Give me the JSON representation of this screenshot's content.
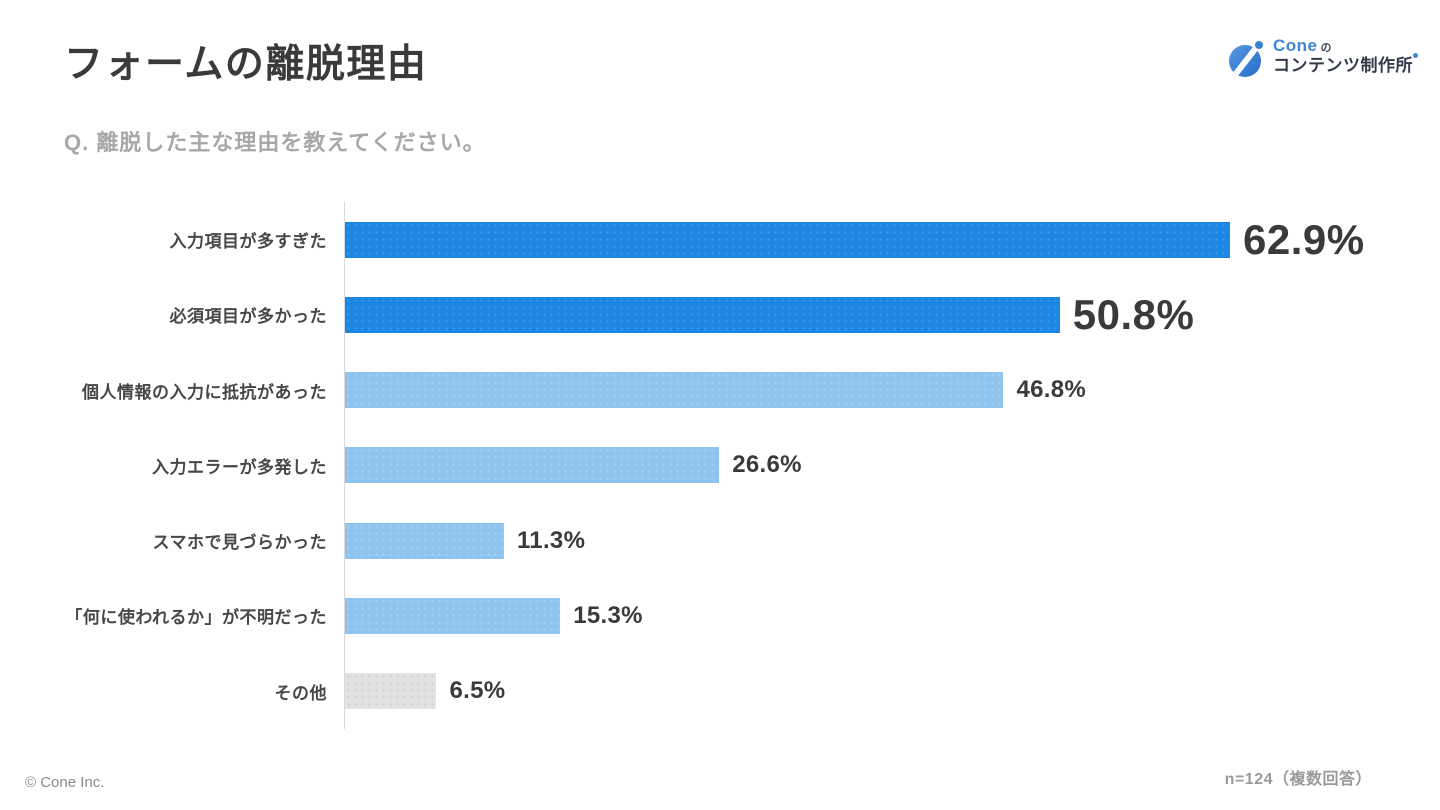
{
  "title": "フォームの離脱理由",
  "subtitle": "Q. 離脱した主な理由を教えてください。",
  "logo": {
    "brand": "Cone",
    "brand_suffix": "の",
    "secondary": "コンテンツ制作所"
  },
  "footer": {
    "copyright": "© Cone Inc.",
    "sample_note": "n=124（複数回答）"
  },
  "colors": {
    "bar_primary": "#1c86e3",
    "bar_secondary": "#8fc4ef",
    "bar_muted": "#e2e2e2",
    "brand_blue": "#3f86d8",
    "title_text": "#3a3a3a",
    "subtitle_text": "#a8a8a8"
  },
  "chart_data": {
    "type": "bar",
    "orientation": "horizontal",
    "title": "フォームの離脱理由",
    "question": "Q. 離脱した主な理由を教えてください。",
    "sample_size": "n=124（複数回答）",
    "categories": [
      "入力項目が多すぎた",
      "必須項目が多かった",
      "個人情報の入力に抵抗があった",
      "入力エラーが多発した",
      "スマホで見づらかった",
      "「何に使われるか」が不明だった",
      "その他"
    ],
    "values": [
      62.9,
      50.8,
      46.8,
      26.6,
      11.3,
      15.3,
      6.5
    ],
    "value_labels": [
      "62.9%",
      "50.8%",
      "46.8%",
      "26.6%",
      "11.3%",
      "15.3%",
      "6.5%"
    ],
    "emphasis": [
      "primary",
      "primary",
      "secondary",
      "secondary",
      "secondary",
      "secondary",
      "muted"
    ],
    "xlim": [
      0,
      63.6
    ],
    "gridlines": false,
    "legend": false
  }
}
